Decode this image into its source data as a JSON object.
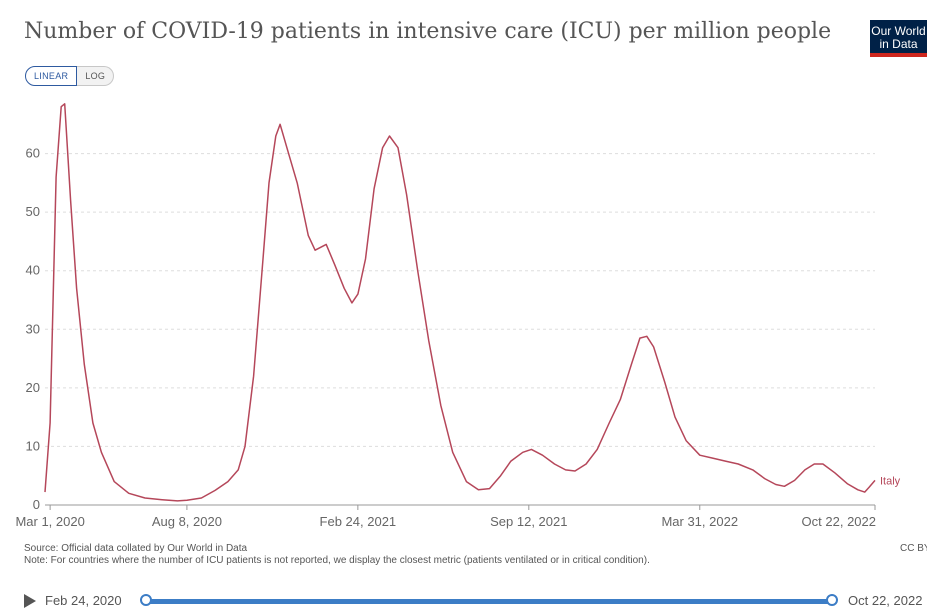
{
  "header": {
    "title": "Number of COVID-19 patients in intensive care (ICU) per million people",
    "logo_line1": "Our World",
    "logo_line2": "in Data"
  },
  "controls": {
    "linear_label": "LINEAR",
    "log_label": "LOG"
  },
  "footer": {
    "source": "Source: Official data collated by Our World in Data",
    "note": "Note: For countries where the number of ICU patients is not reported, we display the closest metric (patients ventilated or in critical condition).",
    "license": "CC BY"
  },
  "timeline": {
    "start_label": "Feb 24, 2020",
    "end_label": "Oct 22, 2022"
  },
  "colors": {
    "series": "#b5475a",
    "grid": "#dddddd",
    "axis": "#666666",
    "timeline": "#3c7dc6"
  },
  "chart_data": {
    "type": "line",
    "title": "Number of COVID-19 patients in intensive care (ICU) per million people",
    "xlabel": "",
    "ylabel": "",
    "ylim": [
      0,
      70
    ],
    "xlim": [
      "2020-02-24",
      "2022-10-22"
    ],
    "y_ticks": [
      0,
      10,
      20,
      30,
      40,
      50,
      60
    ],
    "x_ticks": [
      "Mar 1, 2020",
      "Aug 8, 2020",
      "Feb 24, 2021",
      "Sep 12, 2021",
      "Mar 31, 2022",
      "Oct 22, 2022"
    ],
    "x_tick_dates": [
      "2020-03-01",
      "2020-08-08",
      "2021-02-24",
      "2021-09-12",
      "2022-03-31",
      "2022-10-22"
    ],
    "grid": "horizontal dashed",
    "series": [
      {
        "name": "Italy",
        "points": [
          [
            "2020-02-24",
            2.2
          ],
          [
            "2020-03-01",
            14
          ],
          [
            "2020-03-08",
            56
          ],
          [
            "2020-03-14",
            68
          ],
          [
            "2020-03-18",
            68.5
          ],
          [
            "2020-03-25",
            52
          ],
          [
            "2020-04-01",
            37
          ],
          [
            "2020-04-10",
            24
          ],
          [
            "2020-04-20",
            14
          ],
          [
            "2020-04-30",
            9
          ],
          [
            "2020-05-15",
            4
          ],
          [
            "2020-06-01",
            2
          ],
          [
            "2020-06-20",
            1.2
          ],
          [
            "2020-07-10",
            0.9
          ],
          [
            "2020-07-28",
            0.7
          ],
          [
            "2020-08-08",
            0.8
          ],
          [
            "2020-08-25",
            1.2
          ],
          [
            "2020-09-10",
            2.5
          ],
          [
            "2020-09-25",
            4
          ],
          [
            "2020-10-07",
            6
          ],
          [
            "2020-10-15",
            10
          ],
          [
            "2020-10-25",
            22
          ],
          [
            "2020-11-05",
            42
          ],
          [
            "2020-11-12",
            55
          ],
          [
            "2020-11-20",
            63
          ],
          [
            "2020-11-25",
            65
          ],
          [
            "2020-12-05",
            60
          ],
          [
            "2020-12-15",
            55
          ],
          [
            "2020-12-28",
            46
          ],
          [
            "2021-01-05",
            43.5
          ],
          [
            "2021-01-18",
            44.5
          ],
          [
            "2021-01-28",
            41
          ],
          [
            "2021-02-08",
            37
          ],
          [
            "2021-02-17",
            34.5
          ],
          [
            "2021-02-24",
            36
          ],
          [
            "2021-03-05",
            42
          ],
          [
            "2021-03-15",
            54
          ],
          [
            "2021-03-25",
            61
          ],
          [
            "2021-04-02",
            63
          ],
          [
            "2021-04-12",
            61
          ],
          [
            "2021-04-22",
            53
          ],
          [
            "2021-05-05",
            40
          ],
          [
            "2021-05-18",
            28
          ],
          [
            "2021-06-01",
            17
          ],
          [
            "2021-06-15",
            9
          ],
          [
            "2021-07-01",
            4
          ],
          [
            "2021-07-15",
            2.6
          ],
          [
            "2021-07-28",
            2.8
          ],
          [
            "2021-08-10",
            5
          ],
          [
            "2021-08-22",
            7.5
          ],
          [
            "2021-09-05",
            9
          ],
          [
            "2021-09-15",
            9.5
          ],
          [
            "2021-09-28",
            8.5
          ],
          [
            "2021-10-12",
            7
          ],
          [
            "2021-10-25",
            6
          ],
          [
            "2021-11-05",
            5.8
          ],
          [
            "2021-11-18",
            7
          ],
          [
            "2021-12-01",
            9.5
          ],
          [
            "2021-12-15",
            14
          ],
          [
            "2021-12-28",
            18
          ],
          [
            "2022-01-10",
            24
          ],
          [
            "2022-01-20",
            28.5
          ],
          [
            "2022-01-28",
            28.8
          ],
          [
            "2022-02-05",
            27
          ],
          [
            "2022-02-18",
            21
          ],
          [
            "2022-03-02",
            15
          ],
          [
            "2022-03-15",
            11
          ],
          [
            "2022-03-31",
            8.5
          ],
          [
            "2022-04-15",
            8
          ],
          [
            "2022-04-30",
            7.5
          ],
          [
            "2022-05-15",
            7
          ],
          [
            "2022-06-01",
            6
          ],
          [
            "2022-06-15",
            4.5
          ],
          [
            "2022-06-28",
            3.5
          ],
          [
            "2022-07-08",
            3.2
          ],
          [
            "2022-07-20",
            4.2
          ],
          [
            "2022-08-01",
            6
          ],
          [
            "2022-08-12",
            7
          ],
          [
            "2022-08-22",
            7
          ],
          [
            "2022-09-05",
            5.5
          ],
          [
            "2022-09-20",
            3.6
          ],
          [
            "2022-10-02",
            2.6
          ],
          [
            "2022-10-10",
            2.2
          ],
          [
            "2022-10-15",
            3
          ],
          [
            "2022-10-22",
            4.2
          ]
        ]
      }
    ]
  }
}
